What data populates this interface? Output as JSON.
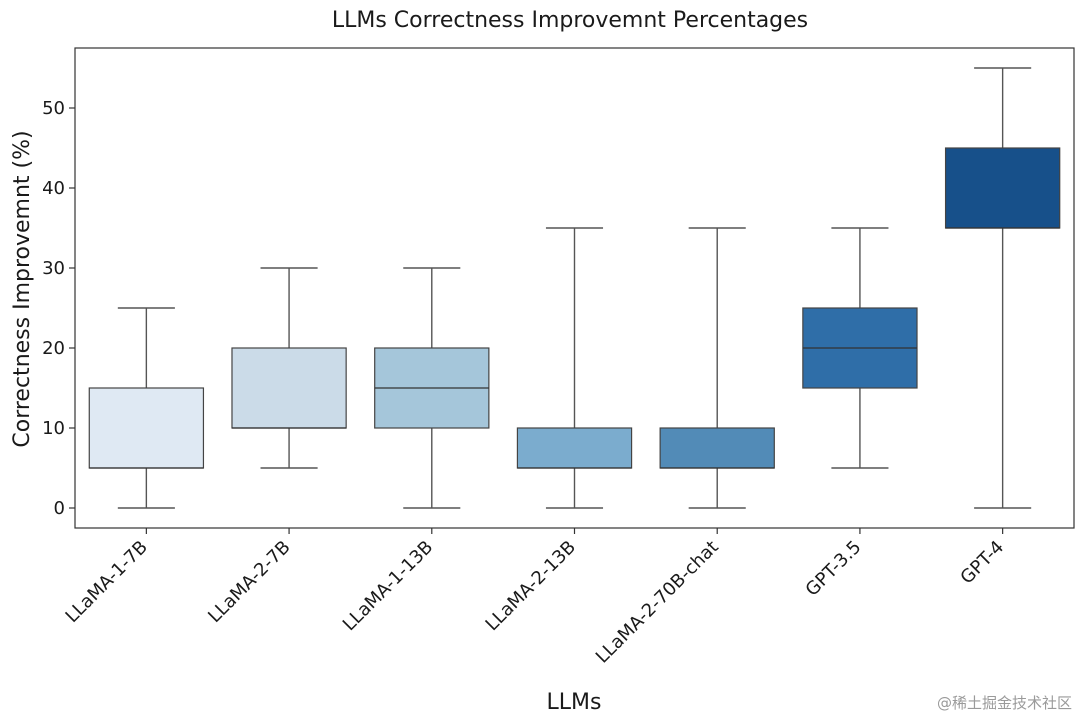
{
  "chart_data": {
    "type": "box",
    "title": "LLMs Correctness Improvemnt Percentages",
    "xlabel": "LLMs",
    "ylabel": "Correctness Improvemnt (%)",
    "ylim": [
      -2.5,
      57.5
    ],
    "yticks": [
      0,
      10,
      20,
      30,
      40,
      50
    ],
    "grid": false,
    "categories": [
      "LLaMA-1-7B",
      "LLaMA-2-7B",
      "LLaMA-1-13B",
      "LLaMA-2-13B",
      "LLaMA-2-70B-chat",
      "GPT-3.5",
      "GPT-4"
    ],
    "boxes": [
      {
        "min": 0,
        "q1": 5,
        "median": 5,
        "q3": 15,
        "max": 25,
        "color": "#dfe9f3"
      },
      {
        "min": 5,
        "q1": 10,
        "median": 10,
        "q3": 20,
        "max": 30,
        "color": "#cbdbe8"
      },
      {
        "min": 0,
        "q1": 10,
        "median": 15,
        "q3": 20,
        "max": 30,
        "color": "#a5c6da"
      },
      {
        "min": 0,
        "q1": 5,
        "median": 5,
        "q3": 10,
        "max": 35,
        "color": "#7bacce"
      },
      {
        "min": 0,
        "q1": 5,
        "median": 5,
        "q3": 10,
        "max": 35,
        "color": "#528bb7"
      },
      {
        "min": 5,
        "q1": 15,
        "median": 20,
        "q3": 25,
        "max": 35,
        "color": "#2f6ea8"
      },
      {
        "min": 0,
        "q1": 35,
        "median": 35,
        "q3": 45,
        "max": 55,
        "color": "#17508a"
      }
    ]
  },
  "watermark": "@稀土掘金技术社区"
}
